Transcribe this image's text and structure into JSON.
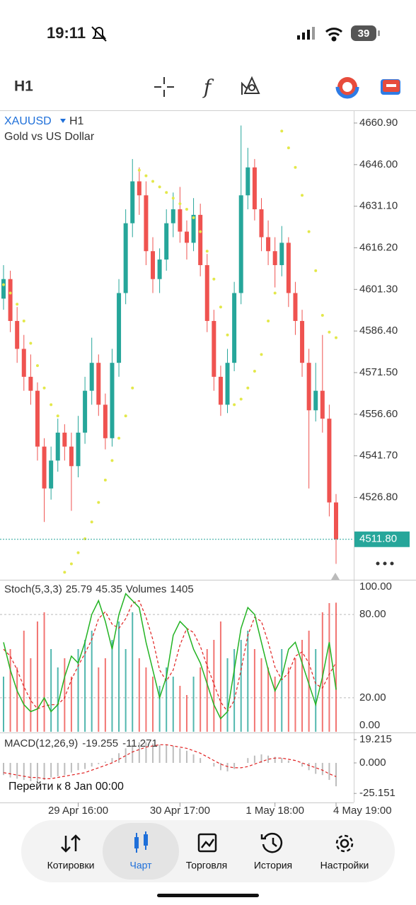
{
  "status_bar": {
    "time": "19:11",
    "battery": "39"
  },
  "toolbar": {
    "timeframe": "H1"
  },
  "chart_data": {
    "type": "candlestick",
    "symbol": "XAUUSD",
    "timeframe": "H1",
    "subtitle": "Gold vs US Dollar",
    "categories": [
      null,
      null,
      null,
      null,
      null,
      null,
      null,
      null,
      null,
      null,
      null,
      "29 Apr 16:00",
      null,
      null,
      null,
      null,
      null,
      null,
      null,
      null,
      null,
      null,
      null,
      null,
      null,
      null,
      "30 Apr 17:00",
      null,
      null,
      null,
      null,
      null,
      null,
      null,
      null,
      null,
      null,
      null,
      null,
      null,
      "1 May 18:00",
      null,
      null,
      null,
      null,
      null,
      null,
      null,
      null,
      "4 May 19:00"
    ],
    "open": [
      4598,
      4605,
      4590,
      4580,
      4570,
      4565,
      4545,
      4530,
      4540,
      4550,
      4545,
      4538,
      4550,
      4565,
      4575,
      4560,
      4548,
      4575,
      4600,
      4625,
      4640,
      4635,
      4615,
      4605,
      4612,
      4625,
      4630,
      4622,
      4618,
      4628,
      4610,
      4590,
      4570,
      4560,
      4575,
      4600,
      4635,
      4645,
      4630,
      4620,
      4615,
      4610,
      4618,
      4600,
      4590,
      4575,
      4558,
      4565,
      4555,
      4525
    ],
    "high": [
      4610,
      4608,
      4595,
      4585,
      4578,
      4568,
      4548,
      4545,
      4555,
      4553,
      4550,
      4556,
      4570,
      4584,
      4578,
      4564,
      4580,
      4605,
      4630,
      4648,
      4645,
      4640,
      4620,
      4616,
      4630,
      4636,
      4638,
      4626,
      4634,
      4632,
      4614,
      4594,
      4574,
      4580,
      4604,
      4660,
      4652,
      4648,
      4634,
      4626,
      4620,
      4624,
      4620,
      4604,
      4594,
      4580,
      4575,
      4585,
      4560,
      4528
    ],
    "low": [
      4594,
      4586,
      4575,
      4565,
      4560,
      4540,
      4518,
      4526,
      4536,
      4540,
      4522,
      4534,
      4546,
      4560,
      4556,
      4544,
      4545,
      4570,
      4596,
      4620,
      4628,
      4610,
      4600,
      4600,
      4608,
      4620,
      4618,
      4612,
      4615,
      4606,
      4586,
      4565,
      4556,
      4557,
      4572,
      4596,
      4630,
      4626,
      4615,
      4610,
      4602,
      4606,
      4595,
      4585,
      4570,
      4530,
      4554,
      4550,
      4520,
      4503
    ],
    "close": [
      4605,
      4590,
      4580,
      4570,
      4565,
      4545,
      4530,
      4540,
      4550,
      4545,
      4538,
      4550,
      4565,
      4575,
      4560,
      4548,
      4575,
      4600,
      4625,
      4640,
      4635,
      4615,
      4605,
      4612,
      4625,
      4630,
      4622,
      4618,
      4628,
      4610,
      4590,
      4570,
      4560,
      4575,
      4600,
      4635,
      4645,
      4630,
      4620,
      4615,
      4610,
      4618,
      4600,
      4590,
      4575,
      4558,
      4565,
      4555,
      4525,
      4511.8
    ],
    "up_color": "#26a69a",
    "down_color": "#ef5350",
    "ylim": [
      4497.3,
      4665.2
    ],
    "yticks": [
      {
        "value": 4660.9,
        "label": "4660.90"
      },
      {
        "value": 4646,
        "label": "4646.00"
      },
      {
        "value": 4631.1,
        "label": "4631.10"
      },
      {
        "value": 4616.2,
        "label": "4616.20"
      },
      {
        "value": 4601.3,
        "label": "4601.30"
      },
      {
        "value": 4586.4,
        "label": "4586.40"
      },
      {
        "value": 4571.5,
        "label": "4571.50"
      },
      {
        "value": 4556.6,
        "label": "4556.60"
      },
      {
        "value": 4541.7,
        "label": "4541.70"
      },
      {
        "value": 4526.8,
        "label": "4526.80"
      }
    ],
    "sar": {
      "color": "#e3e84a",
      "values": [
        4603,
        4600,
        4596,
        4590,
        4582,
        4574,
        4566,
        4560,
        4556,
        4500,
        4503,
        4507,
        4512,
        4518,
        4525,
        4533,
        4540,
        4548,
        4556,
        4566,
        4644,
        4642,
        4640,
        4638,
        4636,
        4634,
        4632,
        4630,
        4627,
        4622,
        4615,
        4605,
        4595,
        4585,
        4560,
        4562,
        4566,
        4572,
        4578,
        4590,
        4600,
        4658,
        4652,
        4645,
        4635,
        4622,
        4608,
        4592,
        4586,
        4584
      ]
    },
    "last_price": {
      "value": 4511.8,
      "label": "4511.80"
    },
    "stoch": {
      "name": "Stoch(5,3,3)",
      "k_color": "#22b322",
      "d_color": "#e02020",
      "k": [
        60,
        40,
        25,
        15,
        10,
        12,
        20,
        10,
        15,
        35,
        50,
        45,
        60,
        80,
        90,
        75,
        55,
        80,
        95,
        90,
        85,
        60,
        40,
        20,
        35,
        65,
        75,
        70,
        55,
        45,
        30,
        15,
        5,
        10,
        40,
        70,
        85,
        80,
        60,
        40,
        25,
        35,
        55,
        60,
        45,
        30,
        15,
        35,
        60,
        25.79
      ],
      "d": [
        55,
        50,
        40,
        28,
        18,
        12,
        14,
        15,
        15,
        20,
        33,
        43,
        52,
        62,
        77,
        82,
        73,
        70,
        77,
        88,
        90,
        78,
        62,
        40,
        32,
        40,
        58,
        70,
        67,
        57,
        43,
        30,
        17,
        10,
        18,
        40,
        65,
        78,
        75,
        60,
        42,
        33,
        38,
        50,
        53,
        45,
        30,
        27,
        37,
        45.35
      ],
      "ylim": [
        -4.5,
        104
      ],
      "yticks": [
        {
          "value": 100,
          "label": "100.00"
        },
        {
          "value": 80,
          "label": "80.00"
        },
        {
          "value": 20,
          "label": "20.00"
        },
        {
          "value": 0,
          "label": "0.00"
        }
      ]
    },
    "volumes": {
      "name": "Volumes",
      "ylim": [
        0,
        1500
      ],
      "values": [
        600,
        900,
        700,
        1100,
        800,
        1200,
        1300,
        900,
        700,
        800,
        600,
        900,
        1000,
        1100,
        700,
        800,
        1000,
        1200,
        900,
        1300,
        800,
        700,
        600,
        500,
        700,
        600,
        500,
        400,
        600,
        700,
        900,
        1000,
        1200,
        800,
        900,
        1000,
        1100,
        900,
        800,
        700,
        600,
        900,
        700,
        800,
        1000,
        1100,
        900,
        1300,
        1400,
        1405
      ]
    },
    "macd": {
      "name": "MACD(12,26,9)",
      "hist_color": "#bdbdbd",
      "signal_color": "#e02020",
      "values": [
        -10,
        -12,
        -13,
        -14,
        -15,
        -15,
        -14,
        -12,
        -11,
        -10,
        -8,
        -6,
        -5,
        -3,
        -1,
        1,
        4,
        8,
        12,
        15,
        17,
        17,
        16,
        15,
        15,
        14,
        12,
        10,
        7,
        4,
        0,
        -3,
        -6,
        -7,
        -5,
        0,
        4,
        6,
        7,
        6,
        5,
        4,
        2,
        0,
        -3,
        -6,
        -9,
        -10,
        -14,
        -19.255
      ],
      "signal": [
        -8,
        -9,
        -10,
        -11,
        -12,
        -12,
        -13,
        -13,
        -12,
        -11,
        -10,
        -9,
        -8,
        -6,
        -4,
        -2,
        0,
        3,
        6,
        9,
        11,
        13,
        14,
        15,
        15,
        14,
        13,
        12,
        10,
        8,
        5,
        2,
        -1,
        -3,
        -4,
        -4,
        -3,
        -1,
        1,
        3,
        4,
        4,
        3,
        2,
        0,
        -2,
        -4,
        -6,
        -9,
        -11.271
      ],
      "ylim": [
        -32.6,
        23.9
      ],
      "yticks": [
        19.215,
        {
          "value": 0,
          "label": "0.000"
        },
        -25.151
      ]
    }
  },
  "goto": "Перейти к 8 Jan 00:00",
  "nav": [
    "Котировки",
    "Чарт",
    "Торговля",
    "История",
    "Настройки"
  ]
}
